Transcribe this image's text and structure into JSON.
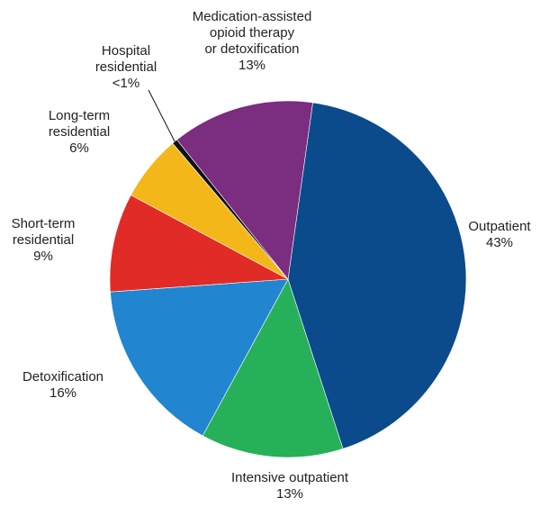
{
  "chart_data": {
    "type": "pie",
    "categories": [
      "Outpatient",
      "Intensive outpatient",
      "Detoxification",
      "Short-term\nresidential",
      "Long-term\nresidential",
      "Hospital\nresidential",
      "Medication-assisted\nopioid therapy\nor detoxification"
    ],
    "values": [
      43,
      13,
      16,
      9,
      6,
      0.5,
      13
    ],
    "value_labels": [
      "43%",
      "13%",
      "16%",
      "9%",
      "6%",
      "<1%",
      "13%"
    ],
    "colors": [
      "#0b4a8b",
      "#27b05a",
      "#2185d0",
      "#e02b27",
      "#f4b71a",
      "#111111",
      "#7b2d7f"
    ]
  }
}
